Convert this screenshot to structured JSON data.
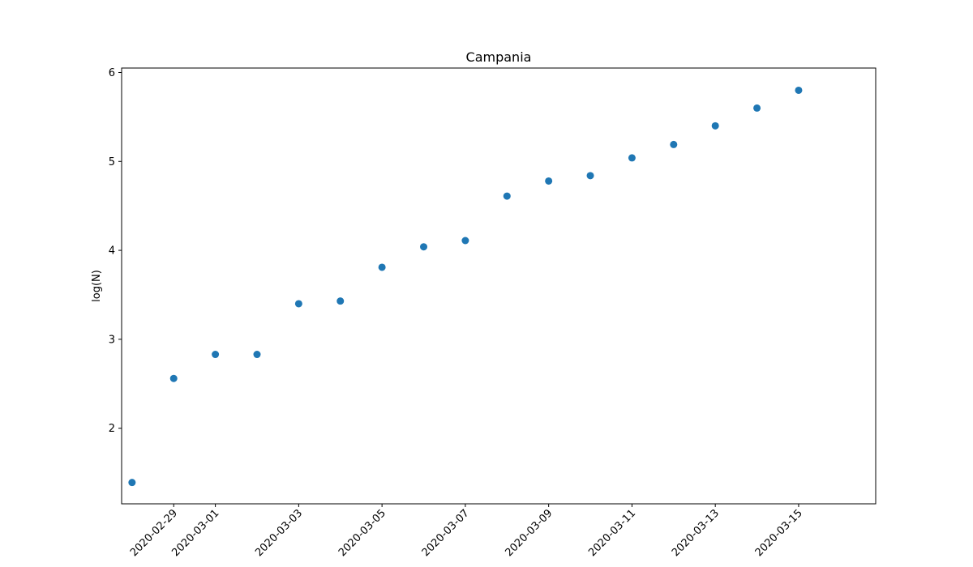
{
  "chart_data": {
    "type": "scatter",
    "title": "Campania",
    "xlabel": "",
    "ylabel": "log(N)",
    "x_type": "date",
    "xlim": [
      "2020-02-27",
      "2020-03-16"
    ],
    "ylim": [
      1.15,
      6.05
    ],
    "x_ticks": [
      "2020-02-29",
      "2020-03-01",
      "2020-03-03",
      "2020-03-05",
      "2020-03-07",
      "2020-03-09",
      "2020-03-11",
      "2020-03-13",
      "2020-03-15"
    ],
    "y_ticks": [
      2,
      3,
      4,
      5,
      6
    ],
    "grid": false,
    "series": [
      {
        "color": "#1f77b4",
        "points": [
          {
            "x": "2020-02-28",
            "y": 1.39
          },
          {
            "x": "2020-02-29",
            "y": 2.56
          },
          {
            "x": "2020-03-01",
            "y": 2.83
          },
          {
            "x": "2020-03-02",
            "y": 2.83
          },
          {
            "x": "2020-03-03",
            "y": 3.4
          },
          {
            "x": "2020-03-04",
            "y": 3.43
          },
          {
            "x": "2020-03-05",
            "y": 3.81
          },
          {
            "x": "2020-03-06",
            "y": 4.04
          },
          {
            "x": "2020-03-07",
            "y": 4.11
          },
          {
            "x": "2020-03-08",
            "y": 4.61
          },
          {
            "x": "2020-03-09",
            "y": 4.78
          },
          {
            "x": "2020-03-10",
            "y": 4.84
          },
          {
            "x": "2020-03-11",
            "y": 5.04
          },
          {
            "x": "2020-03-12",
            "y": 5.19
          },
          {
            "x": "2020-03-13",
            "y": 5.4
          },
          {
            "x": "2020-03-14",
            "y": 5.6
          },
          {
            "x": "2020-03-15",
            "y": 5.8
          }
        ]
      }
    ]
  }
}
